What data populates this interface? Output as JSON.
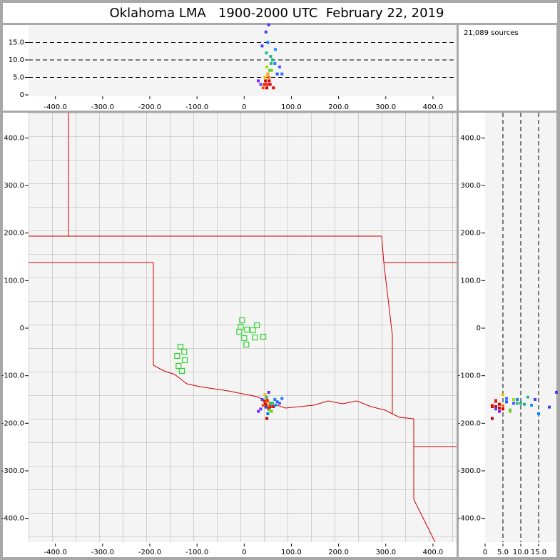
{
  "title": "Oklahoma LMA   1900-2000 UTC  February 22, 2019",
  "source_count": "21,089 sources",
  "chart_data": [
    {
      "type": "scatter",
      "xlim": [
        -457,
        450
      ],
      "ylim": [
        0,
        20
      ],
      "xticks": [
        {
          "value": -400,
          "label": "-400.0"
        },
        {
          "value": -300,
          "label": "-300.0"
        },
        {
          "value": -200,
          "label": "-200.0"
        },
        {
          "value": -100,
          "label": "-100.0"
        },
        0,
        {
          "value": 100,
          "label": "100.0"
        },
        {
          "value": 200,
          "label": "200.0"
        },
        {
          "value": 300,
          "label": "300.0"
        },
        {
          "value": 400,
          "label": "400.0"
        }
      ],
      "yticks": [
        0,
        {
          "value": 5,
          "label": "5.0"
        },
        {
          "value": 10,
          "label": "10.0"
        },
        {
          "value": 15,
          "label": "15.0"
        }
      ],
      "grid": "y",
      "series": [
        {
          "x": [
            45,
            50,
            55,
            48,
            52,
            60,
            40,
            58,
            47,
            53,
            65,
            35,
            70,
            50,
            44,
            56,
            62,
            38,
            75,
            49,
            51,
            54,
            46,
            80,
            30,
            57,
            43,
            66,
            52,
            48
          ],
          "y": [
            4,
            6,
            3,
            8,
            5,
            10,
            2,
            7,
            12,
            4,
            9,
            3,
            6,
            15,
            5,
            11,
            2,
            14,
            8,
            3,
            5,
            7,
            18,
            6,
            4,
            9,
            3,
            13,
            20,
            2
          ],
          "colors": [
            "#e00000",
            "#f0a000",
            "#e00000",
            "#a0e000",
            "#e00000",
            "#20c060",
            "#f05000",
            "#80d000",
            "#20c080",
            "#e00000",
            "#2080ff",
            "#6040ff",
            "#2060ff",
            "#0080ff",
            "#f0c000",
            "#20b0a0",
            "#e00000",
            "#4040ff",
            "#4060ff",
            "#ff2020",
            "#f07000",
            "#60d040",
            "#4040e0",
            "#3070ff",
            "#8020ff",
            "#30b080",
            "#e02000",
            "#2090ff",
            "#6030ff",
            "#c00000"
          ]
        }
      ]
    },
    {
      "type": "scatter",
      "xlim": [
        -457,
        450
      ],
      "ylim": [
        -450,
        453
      ],
      "xticks": [
        {
          "value": -400,
          "label": "-400.0"
        },
        {
          "value": -300,
          "label": "-300.0"
        },
        {
          "value": -200,
          "label": "-200.0"
        },
        {
          "value": -100,
          "label": "-100.0"
        },
        0,
        {
          "value": 100,
          "label": "100.0"
        },
        {
          "value": 200,
          "label": "200.0"
        },
        {
          "value": 300,
          "label": "300.0"
        },
        {
          "value": 400,
          "label": "400.0"
        }
      ],
      "yticks": [
        {
          "value": 400,
          "label": "400.0"
        },
        {
          "value": 300,
          "label": "300.0"
        },
        {
          "value": 200,
          "label": "200.0"
        },
        {
          "value": 100,
          "label": "100.0"
        },
        0,
        {
          "value": -100,
          "label": "-100.0"
        },
        {
          "value": -200,
          "label": "-200.0"
        },
        {
          "value": -300,
          "label": "-300.0"
        },
        {
          "value": -400,
          "label": "-400.0"
        }
      ],
      "series": [
        {
          "x": [
            45,
            50,
            55,
            48,
            52,
            60,
            40,
            58,
            47,
            53,
            65,
            35,
            70,
            50,
            44,
            56,
            62,
            38,
            75,
            49,
            51,
            54,
            46,
            80,
            30,
            57,
            43,
            66,
            52,
            48
          ],
          "y": [
            -160,
            -155,
            -165,
            -150,
            -170,
            -158,
            -162,
            -175,
            -145,
            -168,
            -150,
            -170,
            -155,
            -180,
            -140,
            -160,
            -165,
            -150,
            -158,
            -152,
            -163,
            -172,
            -166,
            -148,
            -175,
            -158,
            -154,
            -162,
            -135,
            -190
          ],
          "colors": [
            "#e00000",
            "#f0a000",
            "#e00000",
            "#a0e000",
            "#e00000",
            "#20c060",
            "#f05000",
            "#80d000",
            "#20c080",
            "#e00000",
            "#2080ff",
            "#6040ff",
            "#2060ff",
            "#0080ff",
            "#f0c000",
            "#20b0a0",
            "#e00000",
            "#4040ff",
            "#4060ff",
            "#ff2020",
            "#f07000",
            "#60d040",
            "#4040e0",
            "#3070ff",
            "#8020ff",
            "#30b080",
            "#e02000",
            "#2090ff",
            "#6030ff",
            "#c00000"
          ]
        },
        {
          "marker": "square",
          "color": "#30d030",
          "x": [
            -4.5,
            -7.5,
            6,
            -10.5,
            27,
            18,
            40.5,
            0,
            22.5,
            4.5,
            -135,
            -127,
            -142,
            -126,
            -139,
            -132
          ],
          "y": [
            16.5,
            3,
            -3,
            -7.5,
            6,
            -4.5,
            -18,
            -21,
            -19.5,
            -34.5,
            -39,
            -49.5,
            -58.5,
            -67.5,
            -79.5,
            -90
          ]
        }
      ]
    },
    {
      "type": "scatter",
      "xlim": [
        0,
        20
      ],
      "ylim": [
        -450,
        453
      ],
      "xticks": [
        0,
        {
          "value": 5,
          "label": "5.0"
        },
        {
          "value": 10,
          "label": "10.0"
        },
        {
          "value": 15,
          "label": "15.0"
        }
      ],
      "yticks": [
        {
          "value": 400,
          "label": "400.0"
        },
        {
          "value": 300,
          "label": "300.0"
        },
        {
          "value": 200,
          "label": "200.0"
        },
        {
          "value": 100,
          "label": "100.0"
        },
        0,
        {
          "value": -100,
          "label": "-100.0"
        },
        {
          "value": -200,
          "label": "-200.0"
        },
        {
          "value": -300,
          "label": "-300.0"
        },
        {
          "value": -400,
          "label": "-400.0"
        }
      ],
      "grid": "x",
      "series": [
        {
          "x": [
            4,
            6,
            3,
            8,
            5,
            10,
            2,
            7,
            12,
            4,
            9,
            3,
            6,
            15,
            5,
            11,
            2,
            14,
            8,
            3,
            5,
            7,
            18,
            6,
            4,
            9,
            3,
            13,
            20,
            2
          ],
          "y": [
            -160,
            -155,
            -165,
            -150,
            -170,
            -158,
            -162,
            -175,
            -145,
            -168,
            -150,
            -170,
            -155,
            -180,
            -140,
            -160,
            -165,
            -150,
            -158,
            -152,
            -163,
            -172,
            -166,
            -148,
            -175,
            -158,
            -154,
            -162,
            -135,
            -190
          ],
          "colors": [
            "#e00000",
            "#f0a000",
            "#e00000",
            "#a0e000",
            "#e00000",
            "#20c060",
            "#f05000",
            "#80d000",
            "#20c080",
            "#e00000",
            "#2080ff",
            "#6040ff",
            "#2060ff",
            "#0080ff",
            "#f0c000",
            "#20b0a0",
            "#e00000",
            "#4040ff",
            "#4060ff",
            "#ff2020",
            "#f07000",
            "#60d040",
            "#4040e0",
            "#3070ff",
            "#8020ff",
            "#30b080",
            "#e02000",
            "#2090ff",
            "#6030ff",
            "#c00000"
          ]
        }
      ]
    }
  ]
}
